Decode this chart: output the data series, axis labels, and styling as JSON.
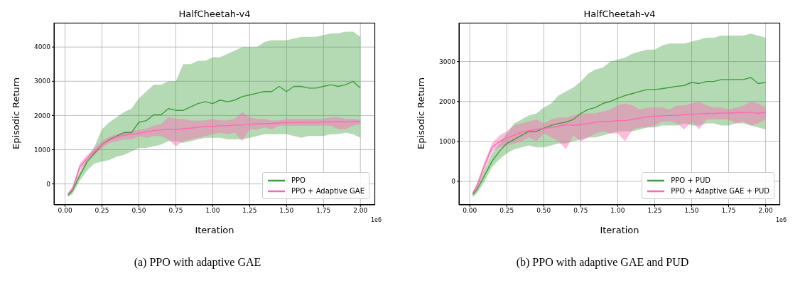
{
  "chart_data": [
    {
      "type": "line",
      "title": "HalfCheetah-v4",
      "xlabel": "Iteration",
      "ylabel": "Episodic Return",
      "annotations": [
        "1e6",
        "(a) PPO with adaptive GAE"
      ],
      "xlim": [
        -0.075,
        2.1
      ],
      "ylim": [
        -610,
        4710
      ],
      "xticks": [
        {
          "value": 0,
          "label": "0.00"
        },
        0.25,
        {
          "value": 0.5,
          "label": "0.50"
        },
        0.75,
        {
          "value": 1,
          "label": "1.00"
        },
        1.25,
        {
          "value": 1.5,
          "label": "1.50"
        },
        1.75,
        {
          "value": 2,
          "label": "2.00"
        }
      ],
      "yticks": [
        0,
        1000,
        2000,
        3000,
        4000
      ],
      "grid": true,
      "legend": "bottom right",
      "x": [
        0.02,
        0.05,
        0.1,
        0.15,
        0.2,
        0.25,
        0.3,
        0.35,
        0.4,
        0.45,
        0.5,
        0.55,
        0.6,
        0.65,
        0.7,
        0.75,
        0.8,
        0.85,
        0.9,
        0.95,
        1.0,
        1.05,
        1.1,
        1.15,
        1.2,
        1.25,
        1.3,
        1.35,
        1.4,
        1.45,
        1.5,
        1.55,
        1.6,
        1.65,
        1.7,
        1.75,
        1.8,
        1.85,
        1.9,
        1.95,
        2.0
      ],
      "series": [
        {
          "name": "PPO",
          "color": "#3a9e3a",
          "values": [
            -330,
            -200,
            250,
            650,
            900,
            1150,
            1300,
            1400,
            1500,
            1500,
            1800,
            1850,
            2020,
            2020,
            2200,
            2150,
            2150,
            2250,
            2350,
            2400,
            2350,
            2450,
            2400,
            2450,
            2550,
            2600,
            2650,
            2700,
            2700,
            2850,
            2700,
            2850,
            2850,
            2800,
            2800,
            2850,
            2900,
            2850,
            2900,
            3000,
            2800
          ],
          "upper": [
            -280,
            -100,
            350,
            750,
            1100,
            1600,
            1800,
            1950,
            2100,
            2200,
            2500,
            2700,
            2900,
            2900,
            3000,
            3000,
            3500,
            3500,
            3600,
            3600,
            3700,
            3700,
            3800,
            3900,
            4000,
            4000,
            4000,
            4150,
            4200,
            4200,
            4200,
            4250,
            4300,
            4300,
            4300,
            4350,
            4400,
            4400,
            4450,
            4450,
            4300
          ],
          "lower": [
            -380,
            -300,
            100,
            400,
            600,
            650,
            700,
            800,
            850,
            950,
            1050,
            1050,
            1100,
            1150,
            1250,
            1250,
            1200,
            1250,
            1300,
            1350,
            1350,
            1350,
            1300,
            1300,
            1300,
            1350,
            1400,
            1450,
            1450,
            1450,
            1450,
            1400,
            1350,
            1400,
            1400,
            1400,
            1450,
            1450,
            1500,
            1450,
            1350
          ]
        },
        {
          "name": "PPO + Adaptive GAE",
          "color": "#ff69b4",
          "values": [
            -300,
            -150,
            500,
            750,
            950,
            1150,
            1280,
            1380,
            1420,
            1450,
            1480,
            1520,
            1560,
            1580,
            1600,
            1580,
            1620,
            1630,
            1660,
            1680,
            1680,
            1700,
            1700,
            1720,
            1720,
            1740,
            1760,
            1760,
            1770,
            1780,
            1790,
            1790,
            1800,
            1800,
            1800,
            1810,
            1810,
            1820,
            1810,
            1820,
            1820
          ],
          "upper": [
            -250,
            -80,
            600,
            850,
            1050,
            1250,
            1380,
            1450,
            1520,
            1550,
            1580,
            1620,
            1700,
            1750,
            1950,
            1900,
            1900,
            1850,
            1850,
            1850,
            1900,
            1850,
            1850,
            1900,
            2100,
            1950,
            1900,
            1900,
            1850,
            1850,
            1900,
            1900,
            1900,
            1900,
            1900,
            1900,
            1950,
            1950,
            1900,
            1900,
            1880
          ],
          "lower": [
            -350,
            -220,
            400,
            650,
            850,
            1050,
            1200,
            1250,
            1300,
            1300,
            1400,
            1350,
            1400,
            1400,
            1300,
            1100,
            1250,
            1300,
            1350,
            1400,
            1450,
            1500,
            1450,
            1500,
            1250,
            1600,
            1600,
            1650,
            1600,
            1700,
            1700,
            1700,
            1700,
            1700,
            1700,
            1700,
            1700,
            1600,
            1600,
            1700,
            1750
          ]
        }
      ]
    },
    {
      "type": "line",
      "title": "HalfCheetah-v4",
      "xlabel": "Iteration",
      "ylabel": "Episodic Return",
      "annotations": [
        "1e6",
        "(b) PPO with adaptive GAE and PUD"
      ],
      "xlim": [
        -0.073,
        2.098
      ],
      "ylim": [
        -588,
        3972
      ],
      "xticks": [
        {
          "value": 0,
          "label": "0.00"
        },
        0.25,
        {
          "value": 0.5,
          "label": "0.50"
        },
        0.75,
        {
          "value": 1,
          "label": "1.00"
        },
        1.25,
        {
          "value": 1.5,
          "label": "1.50"
        },
        1.75,
        {
          "value": 2,
          "label": "2.00"
        }
      ],
      "yticks": [
        0,
        1000,
        2000,
        3000
      ],
      "grid": true,
      "legend": "bottom right",
      "x": [
        0.02,
        0.05,
        0.1,
        0.15,
        0.2,
        0.25,
        0.3,
        0.35,
        0.4,
        0.45,
        0.5,
        0.55,
        0.6,
        0.65,
        0.7,
        0.75,
        0.8,
        0.85,
        0.9,
        0.95,
        1.0,
        1.05,
        1.1,
        1.15,
        1.2,
        1.25,
        1.3,
        1.35,
        1.4,
        1.45,
        1.5,
        1.55,
        1.6,
        1.65,
        1.7,
        1.75,
        1.8,
        1.85,
        1.9,
        1.95,
        2.0
      ],
      "series": [
        {
          "name": "PPO + PUD",
          "color": "#3a9e3a",
          "values": [
            -330,
            -200,
            150,
            500,
            750,
            950,
            1050,
            1150,
            1250,
            1250,
            1330,
            1400,
            1450,
            1480,
            1550,
            1700,
            1800,
            1850,
            1950,
            2000,
            2080,
            2150,
            2200,
            2250,
            2300,
            2300,
            2320,
            2350,
            2380,
            2400,
            2480,
            2450,
            2500,
            2500,
            2550,
            2550,
            2550,
            2550,
            2600,
            2450,
            2480
          ],
          "upper": [
            -280,
            -100,
            300,
            700,
            950,
            1200,
            1450,
            1550,
            1650,
            1700,
            1850,
            1950,
            2150,
            2250,
            2350,
            2500,
            2700,
            2800,
            2850,
            3000,
            3050,
            3100,
            3200,
            3250,
            3300,
            3300,
            3400,
            3450,
            3450,
            3450,
            3500,
            3550,
            3600,
            3600,
            3650,
            3650,
            3650,
            3650,
            3700,
            3650,
            3600
          ],
          "lower": [
            -400,
            -300,
            0,
            350,
            550,
            700,
            800,
            850,
            900,
            850,
            850,
            900,
            950,
            950,
            1000,
            1050,
            1100,
            1100,
            1150,
            1200,
            1250,
            1250,
            1250,
            1300,
            1350,
            1350,
            1400,
            1400,
            1400,
            1450,
            1400,
            1400,
            1450,
            1450,
            1400,
            1400,
            1450,
            1450,
            1400,
            1350,
            1300
          ]
        },
        {
          "name": "PPO + Adaptive GAE + PUD",
          "color": "#ff69b4",
          "values": [
            -300,
            -100,
            400,
            850,
            1000,
            1080,
            1150,
            1230,
            1270,
            1300,
            1320,
            1350,
            1380,
            1420,
            1400,
            1420,
            1450,
            1480,
            1500,
            1500,
            1520,
            1520,
            1550,
            1580,
            1620,
            1630,
            1640,
            1650,
            1650,
            1670,
            1680,
            1690,
            1700,
            1700,
            1710,
            1710,
            1720,
            1720,
            1730,
            1700,
            1730
          ],
          "upper": [
            -250,
            -30,
            500,
            950,
            1150,
            1250,
            1400,
            1450,
            1500,
            1550,
            1450,
            1550,
            1600,
            1600,
            1650,
            1700,
            1700,
            1700,
            1750,
            1800,
            1900,
            1950,
            1900,
            1800,
            1850,
            1850,
            1850,
            1800,
            1900,
            1900,
            1950,
            2000,
            1900,
            1850,
            1850,
            1800,
            1850,
            1900,
            2000,
            1950,
            1850
          ],
          "lower": [
            -350,
            -180,
            300,
            750,
            850,
            900,
            950,
            1000,
            1100,
            1000,
            1200,
            1100,
            1000,
            800,
            1150,
            1000,
            1100,
            1200,
            1250,
            1200,
            1200,
            1000,
            1300,
            1350,
            1350,
            1400,
            1500,
            1500,
            1450,
            1300,
            1500,
            1300,
            1550,
            1550,
            1550,
            1550,
            1450,
            1500,
            1400,
            1450,
            1550
          ]
        }
      ]
    }
  ]
}
